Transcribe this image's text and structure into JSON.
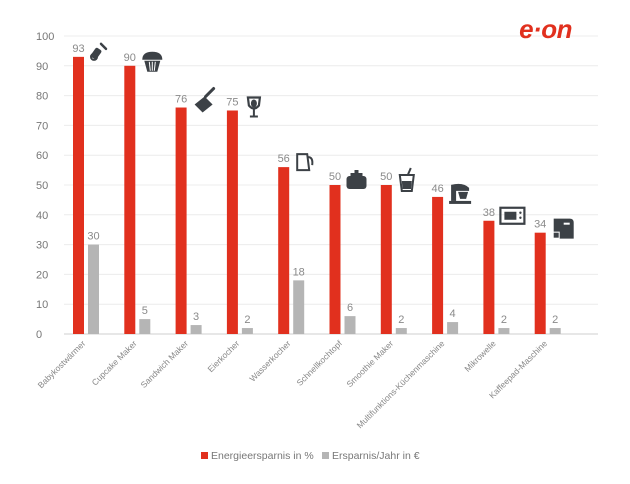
{
  "brand": {
    "logo_text": "e·on",
    "logo_color": "#e1301e"
  },
  "chart_data": {
    "type": "bar",
    "title": "",
    "xlabel": "",
    "ylabel": "",
    "ylim": [
      0,
      100
    ],
    "yticks": [
      0,
      10,
      20,
      30,
      40,
      50,
      60,
      70,
      80,
      90,
      100
    ],
    "grid": true,
    "legend_position": "bottom-center",
    "categories": [
      "Babykostwärmer",
      "Cupcake Maker",
      "Sandwich Maker",
      "Eierkocher",
      "Wasserkocher",
      "Schnellkochtopf",
      "Smoothie Maker",
      "Multifunktions-Küchenmaschine",
      "Mikrowelle",
      "Kaffeepad-Maschine"
    ],
    "icons": [
      "baby-bottle-icon",
      "cupcake-icon",
      "sandwich-maker-icon",
      "egg-cooker-icon",
      "kettle-icon",
      "pressure-cooker-icon",
      "smoothie-glass-icon",
      "stand-mixer-icon",
      "microwave-icon",
      "coffee-machine-icon"
    ],
    "series": [
      {
        "name": "Energieersparnis in %",
        "color": "#e1301e",
        "values": [
          93,
          90,
          76,
          75,
          56,
          50,
          50,
          46,
          38,
          34
        ]
      },
      {
        "name": "Ersparnis/Jahr in €",
        "color": "#b5b5b5",
        "values": [
          30,
          5,
          3,
          2,
          18,
          6,
          2,
          4,
          2,
          2
        ]
      }
    ]
  }
}
